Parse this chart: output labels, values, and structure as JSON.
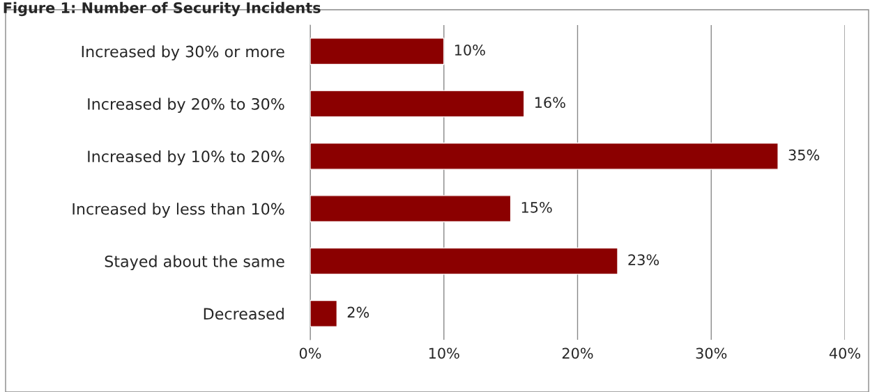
{
  "chart_data": {
    "type": "bar",
    "orientation": "horizontal",
    "title": "Figure 1: Number of Security Incidents",
    "categories": [
      "Increased by 30% or more",
      "Increased by 20% to 30%",
      "Increased by 10% to 20%",
      "Increased by less than 10%",
      "Stayed about the same",
      "Decreased"
    ],
    "values": [
      10,
      16,
      35,
      15,
      23,
      2
    ],
    "color": "#8b0000",
    "value_labels": [
      "10%",
      "16%",
      "35%",
      "15%",
      "23%",
      "2%"
    ],
    "xlim": [
      0,
      40
    ],
    "xticks": [
      {
        "value": 0,
        "label": "0%"
      },
      {
        "value": 10,
        "label": "10%"
      },
      {
        "value": 20,
        "label": "20%"
      },
      {
        "value": 30,
        "label": "30%"
      },
      {
        "value": 40,
        "label": "40%"
      }
    ],
    "grid": "x",
    "legend": false
  }
}
